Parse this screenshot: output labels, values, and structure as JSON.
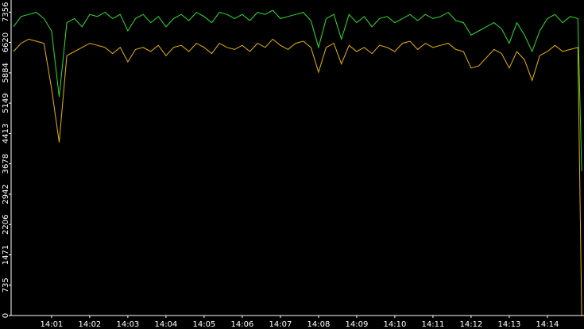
{
  "chart_data": {
    "type": "line",
    "x": [
      840.0,
      840.2,
      840.4,
      840.6,
      840.8,
      841.0,
      841.2,
      841.4,
      841.6,
      841.8,
      842.0,
      842.2,
      842.4,
      842.6,
      842.8,
      843.0,
      843.2,
      843.4,
      843.6,
      843.8,
      844.0,
      844.2,
      844.4,
      844.6,
      844.8,
      845.0,
      845.2,
      845.4,
      845.6,
      845.8,
      846.0,
      846.2,
      846.4,
      846.6,
      846.8,
      847.0,
      847.2,
      847.4,
      847.6,
      847.8,
      848.0,
      848.2,
      848.4,
      848.6,
      848.8,
      849.0,
      849.2,
      849.4,
      849.6,
      849.8,
      850.0,
      850.2,
      850.4,
      850.6,
      850.8,
      851.0,
      851.2,
      851.4,
      851.6,
      851.8,
      852.0,
      852.2,
      852.4,
      852.6,
      852.8,
      853.0,
      853.2,
      853.4,
      853.6,
      853.8,
      854.0,
      854.2,
      854.4,
      854.6,
      854.8,
      854.9
    ],
    "series": [
      {
        "color": "#2fe02f",
        "values": [
          7000,
          7250,
          7300,
          7350,
          7200,
          6900,
          5300,
          7100,
          7200,
          7000,
          7300,
          7250,
          7350,
          7200,
          7300,
          6900,
          7200,
          7300,
          7100,
          7250,
          7000,
          7200,
          7300,
          7150,
          7350,
          7250,
          7100,
          7350,
          7300,
          7200,
          7300,
          7150,
          7350,
          7300,
          7400,
          7200,
          7250,
          7300,
          7350,
          7150,
          6500,
          7200,
          7300,
          6700,
          7300,
          7100,
          7250,
          7000,
          7200,
          7250,
          7100,
          7200,
          7300,
          7150,
          7300,
          7200,
          7250,
          7350,
          7150,
          7100,
          6800,
          6900,
          7000,
          7100,
          6950,
          6600,
          7100,
          6800,
          6400,
          6900,
          7200,
          7300,
          7100,
          7250,
          7200,
          3500
        ]
      },
      {
        "color": "#e8b400",
        "values": [
          6400,
          6600,
          6700,
          6650,
          6600,
          5500,
          4200,
          6300,
          6400,
          6500,
          6600,
          6550,
          6500,
          6350,
          6500,
          6150,
          6450,
          6500,
          6400,
          6550,
          6300,
          6500,
          6550,
          6400,
          6600,
          6500,
          6350,
          6600,
          6500,
          6450,
          6550,
          6400,
          6600,
          6500,
          6700,
          6550,
          6450,
          6600,
          6650,
          6500,
          5900,
          6500,
          6600,
          6100,
          6550,
          6400,
          6500,
          6350,
          6550,
          6500,
          6400,
          6600,
          6650,
          6450,
          6600,
          6500,
          6550,
          6600,
          6450,
          6400,
          6000,
          6050,
          6250,
          6450,
          6350,
          6000,
          6400,
          6200,
          5700,
          6300,
          6400,
          6550,
          6400,
          6450,
          6500,
          0
        ]
      }
    ],
    "xlim": [
      839.94,
      854.96
    ],
    "xticks": [
      {
        "value": 841,
        "label": "14:01"
      },
      {
        "value": 842,
        "label": "14:02"
      },
      {
        "value": 843,
        "label": "14:03"
      },
      {
        "value": 844,
        "label": "14:04"
      },
      {
        "value": 845,
        "label": "14:05"
      },
      {
        "value": 846,
        "label": "14:06"
      },
      {
        "value": 847,
        "label": "14:07"
      },
      {
        "value": 848,
        "label": "14:08"
      },
      {
        "value": 849,
        "label": "14:09"
      },
      {
        "value": 850,
        "label": "14:10"
      },
      {
        "value": 851,
        "label": "14:11"
      },
      {
        "value": 852,
        "label": "14:12"
      },
      {
        "value": 853,
        "label": "14:13"
      },
      {
        "value": 854,
        "label": "14:14"
      }
    ],
    "ylim": [
      0,
      7650
    ],
    "yticks": [
      0,
      735,
      1471,
      2206,
      2942,
      3678,
      4413,
      5149,
      5884,
      6620,
      7356
    ],
    "grid": false
  }
}
